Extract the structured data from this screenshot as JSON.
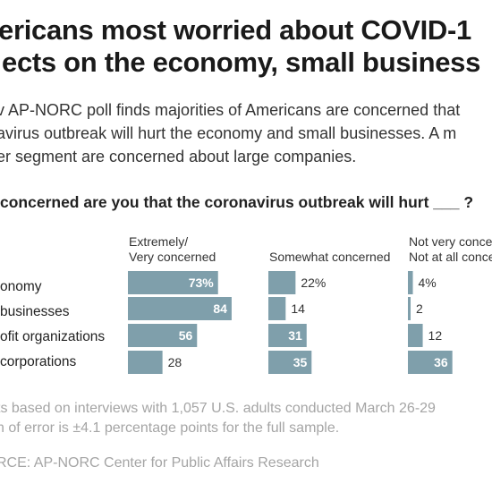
{
  "title_line1": "ericans most worried about COVID-1",
  "title_line2": "ects on the economy, small business",
  "subtitle_line1": "v AP-NORC poll finds majorities of Americans are concerned that",
  "subtitle_line2": "avirus outbreak will hurt the economy and small businesses. A m",
  "subtitle_line3": "er segment are concerned about large companies.",
  "question": "concerned are you that the coronavirus outbreak will hurt ___ ?",
  "footnote_line1": "ts based on interviews with 1,057 U.S. adults conducted March 26-29",
  "footnote_line2": "n of error is ±4.1 percentage points for the full sample.",
  "source": "RCE: AP-NORC Center for Public Affairs Research",
  "bar_color": "#7f9fab",
  "chart_data": {
    "type": "bar",
    "title": "concerned are you that the coronavirus outbreak will hurt ___ ?",
    "categories": [
      "onomy",
      "businesses",
      "ofit organizations",
      "corporations"
    ],
    "series": [
      {
        "name": "Extremely/ Very concerned",
        "head_line1": "Extremely/",
        "head_line2": "Very concerned",
        "values": [
          73,
          84,
          56,
          28
        ],
        "labels": [
          "73%",
          "84",
          "56",
          "28"
        ]
      },
      {
        "name": "Somewhat concerned",
        "head_line1": "Somewhat concerned",
        "head_line2": "",
        "values": [
          22,
          14,
          31,
          35
        ],
        "labels": [
          "22%",
          "14",
          "31",
          "35"
        ]
      },
      {
        "name": "Not very concer Not at all concer",
        "head_line1": "Not very concer",
        "head_line2": "Not at all concer",
        "values": [
          4,
          2,
          12,
          36
        ],
        "labels": [
          "4%",
          "2",
          "12",
          "36"
        ]
      }
    ],
    "unit": "%",
    "grid": false
  }
}
